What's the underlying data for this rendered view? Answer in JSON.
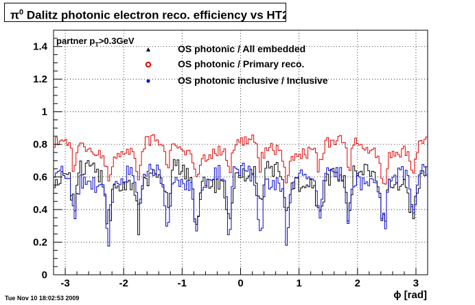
{
  "chart_data": {
    "type": "line",
    "title": "π0 Dalitz photonic electron reco. efficiency vs HT2",
    "title_parts": {
      "pre": "π",
      "sup": "0",
      "post": " Dalitz photonic electron reco. efficiency vs HT2"
    },
    "xlabel": "ϕ [rad]",
    "ylabel": "",
    "xlim": [
      -3.2,
      3.2
    ],
    "ylim": [
      0,
      1.5
    ],
    "x_ticks": [
      -3,
      -2,
      -1,
      0,
      1,
      2,
      3
    ],
    "y_ticks": [
      0,
      0.2,
      0.4,
      0.6,
      0.8,
      1,
      1.2,
      1.4
    ],
    "grid": true,
    "legend_position": "top-center",
    "annotation": {
      "pre": "partner p",
      "sub": "T",
      "post": ">0.3GeV"
    },
    "timestamp": "Tue Nov 10 18:02:53 2009",
    "n_bins": 200,
    "series": [
      {
        "name": "OS photonic / All embedded",
        "color": "#000000",
        "marker": "triangle",
        "base": 0.6,
        "amp": 0.06,
        "dip": 0.28,
        "noise": 0.055,
        "seed": 11
      },
      {
        "name": "OS photonic / Primary reco.",
        "color": "#dd0000",
        "marker": "open-circle",
        "base": 0.78,
        "amp": 0.05,
        "dip": 0.16,
        "noise": 0.035,
        "seed": 23
      },
      {
        "name": "OS photonic inclusive / Inclusive",
        "color": "#0000cc",
        "marker": "dot",
        "base": 0.6,
        "amp": 0.05,
        "dip": 0.33,
        "noise": 0.05,
        "seed": 37
      }
    ],
    "sector_centers": [
      -2.85,
      -2.25,
      -1.75,
      -1.25,
      -0.75,
      -0.2,
      0.35,
      0.8,
      1.35,
      1.85,
      2.45,
      2.95
    ]
  }
}
